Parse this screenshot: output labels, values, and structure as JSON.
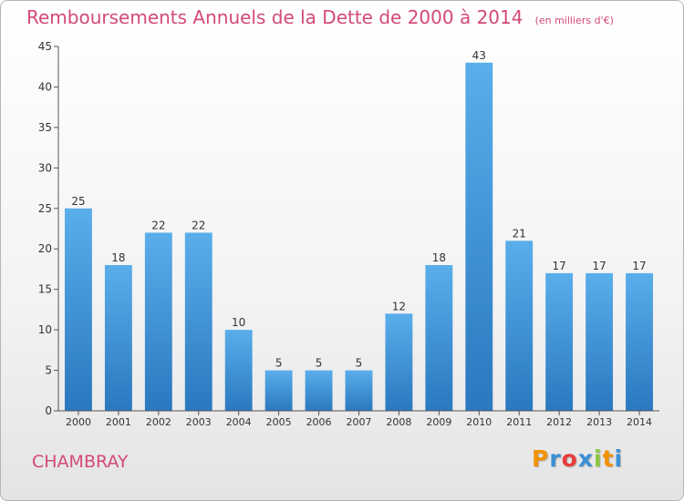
{
  "header": {
    "title": "Remboursements Annuels de la Dette de 2000 à 2014",
    "subtitle": "(en milliers d'€)"
  },
  "footer": {
    "commune": "CHAMBRAY",
    "logo_text": "Proxiti",
    "logo_colors": [
      "#f39200",
      "#3a8fd6",
      "#e73c3c",
      "#3a8fd6",
      "#8cc63f",
      "#f39200",
      "#3a8fd6"
    ]
  },
  "chart_data": {
    "type": "bar",
    "title": "Remboursements Annuels de la Dette de 2000 à 2014",
    "subtitle": "(en milliers d'€)",
    "xlabel": "",
    "ylabel": "",
    "categories": [
      "2000",
      "2001",
      "2002",
      "2003",
      "2004",
      "2005",
      "2006",
      "2007",
      "2008",
      "2009",
      "2010",
      "2011",
      "2012",
      "2013",
      "2014"
    ],
    "values": [
      25,
      18,
      22,
      22,
      10,
      5,
      5,
      5,
      12,
      18,
      43,
      21,
      17,
      17,
      17
    ],
    "ylim": [
      0,
      45
    ],
    "yticks": [
      0,
      5,
      10,
      15,
      20,
      25,
      30,
      35,
      40,
      45
    ],
    "grid": false,
    "colors": {
      "bar_top": "#5aaeea",
      "bar_bottom": "#2a78bf",
      "axis": "#555555",
      "text": "#333333"
    }
  }
}
